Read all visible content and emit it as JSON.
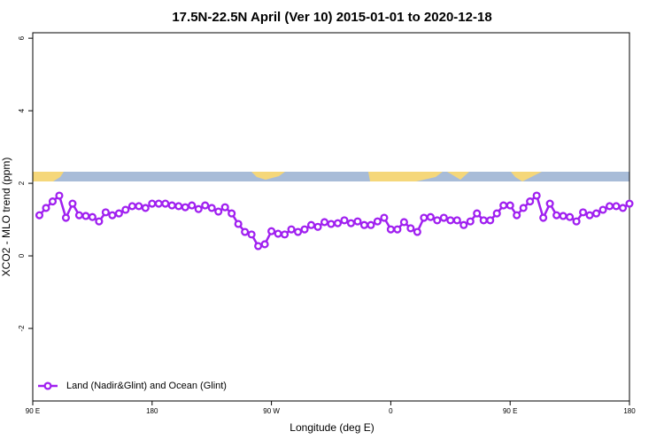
{
  "chart_data": {
    "type": "line",
    "title": "17.5N-22.5N April (Ver 10)   2015-01-01 to 2020-12-18",
    "x_label": "Longitude (deg E)",
    "y_label": "XCO2 - MLO trend (ppm)",
    "x": [
      95,
      100,
      105,
      110,
      115,
      120,
      125,
      130,
      135,
      140,
      145,
      150,
      155,
      160,
      165,
      170,
      175,
      180,
      185,
      190,
      195,
      200,
      205,
      210,
      215,
      220,
      225,
      230,
      235,
      240,
      245,
      250,
      255,
      260,
      265,
      270,
      275,
      280,
      285,
      290,
      295,
      300,
      305,
      310,
      315,
      320,
      325,
      330,
      335,
      340,
      345,
      350,
      355,
      360,
      365,
      370,
      375,
      380,
      385,
      390,
      395,
      400,
      405,
      410,
      415,
      420,
      425,
      430,
      435,
      440,
      445,
      450,
      455,
      460,
      465,
      470,
      475,
      480,
      485,
      490,
      495,
      500,
      505,
      510,
      515,
      520,
      525,
      530,
      535,
      540
    ],
    "series": [
      {
        "name": "Land (Nadir&Glint) and Ocean (Glint)",
        "color": "#a020f0",
        "values": [
          1.12,
          1.32,
          1.5,
          1.66,
          1.05,
          1.44,
          1.12,
          1.1,
          1.07,
          0.95,
          1.2,
          1.12,
          1.17,
          1.27,
          1.37,
          1.37,
          1.32,
          1.44,
          1.44,
          1.44,
          1.39,
          1.37,
          1.34,
          1.39,
          1.29,
          1.39,
          1.32,
          1.22,
          1.34,
          1.17,
          0.88,
          0.66,
          0.59,
          0.27,
          0.32,
          0.68,
          0.61,
          0.59,
          0.73,
          0.66,
          0.73,
          0.85,
          0.8,
          0.93,
          0.88,
          0.9,
          0.98,
          0.9,
          0.95,
          0.85,
          0.85,
          0.95,
          1.05,
          0.73,
          0.73,
          0.93,
          0.76,
          0.66,
          1.05,
          1.07,
          0.98,
          1.05,
          0.98,
          0.98,
          0.85,
          0.95,
          1.17,
          0.98,
          0.98,
          1.17,
          1.39,
          1.39,
          1.12,
          1.32,
          1.5,
          1.66,
          1.05,
          1.44,
          1.12,
          1.1,
          1.07,
          0.95,
          1.2,
          1.12,
          1.17,
          1.27,
          1.37,
          1.37,
          1.32,
          1.44
        ]
      }
    ],
    "xlim": [
      90,
      540
    ],
    "xticks": [
      {
        "value": 90,
        "label": "90 E"
      },
      180,
      {
        "value": 270,
        "label": "90 W"
      },
      {
        "value": 360,
        "label": "0"
      },
      {
        "value": 450,
        "label": "90 E"
      },
      {
        "value": 540,
        "label": "180"
      }
    ],
    "ylim": [
      -4,
      6.15
    ],
    "yticks": [
      -2,
      0,
      2,
      4,
      6
    ],
    "legend": "bottomleft"
  }
}
